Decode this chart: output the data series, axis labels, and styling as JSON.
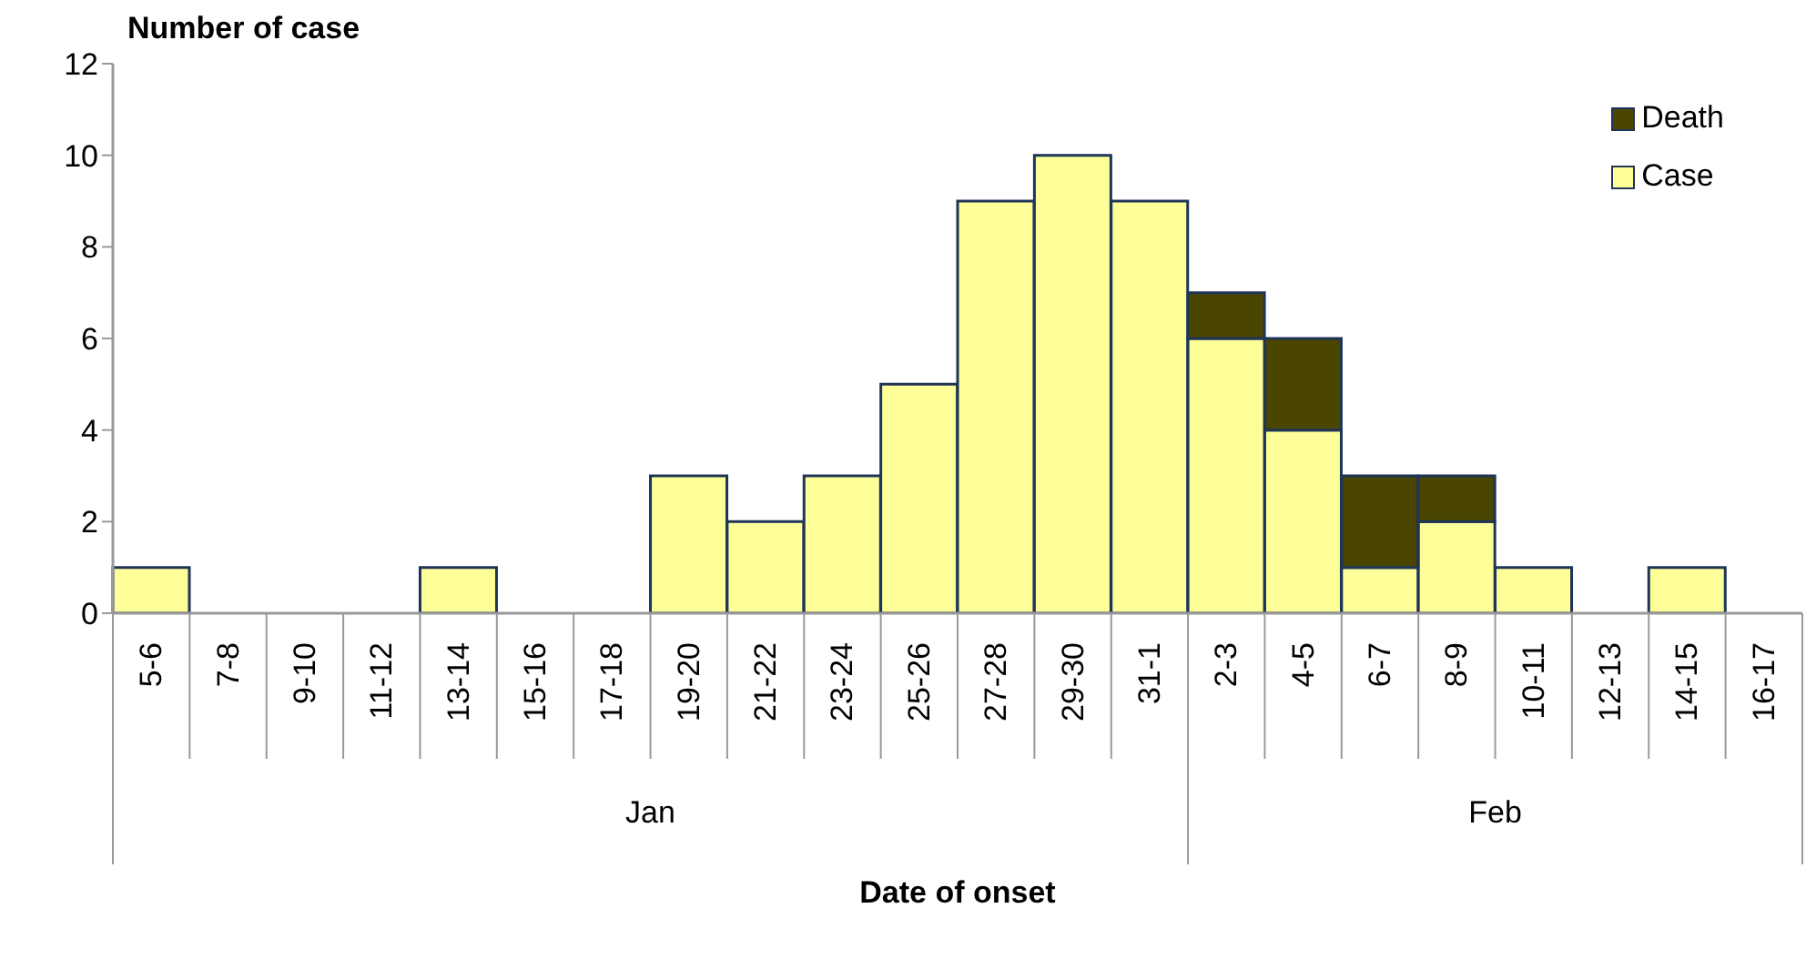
{
  "chart_data": {
    "type": "bar",
    "stacked": true,
    "ylabel": "Number of case",
    "xlabel": "Date of onset",
    "categories": [
      "5-6",
      "7-8",
      "9-10",
      "11-12",
      "13-14",
      "15-16",
      "17-18",
      "19-20",
      "21-22",
      "23-24",
      "25-26",
      "27-28",
      "29-30",
      "31-1",
      "2-3",
      "4-5",
      "6-7",
      "8-9",
      "10-11",
      "12-13",
      "14-15",
      "16-17"
    ],
    "series": [
      {
        "name": "Case",
        "color": "#ffff99",
        "values": [
          1,
          0,
          0,
          0,
          1,
          0,
          0,
          3,
          2,
          3,
          5,
          9,
          10,
          9,
          6,
          4,
          1,
          2,
          1,
          0,
          1,
          0
        ]
      },
      {
        "name": "Death",
        "color": "#4a4500",
        "values": [
          0,
          0,
          0,
          0,
          0,
          0,
          0,
          0,
          0,
          0,
          0,
          0,
          0,
          0,
          1,
          2,
          2,
          1,
          0,
          0,
          0,
          0
        ]
      }
    ],
    "annotations": [
      "Jan",
      "Feb"
    ],
    "ylim": [
      0,
      12
    ],
    "yticks": [
      0,
      2,
      4,
      6,
      8,
      10,
      12
    ],
    "grid": false,
    "legend": "top right"
  }
}
